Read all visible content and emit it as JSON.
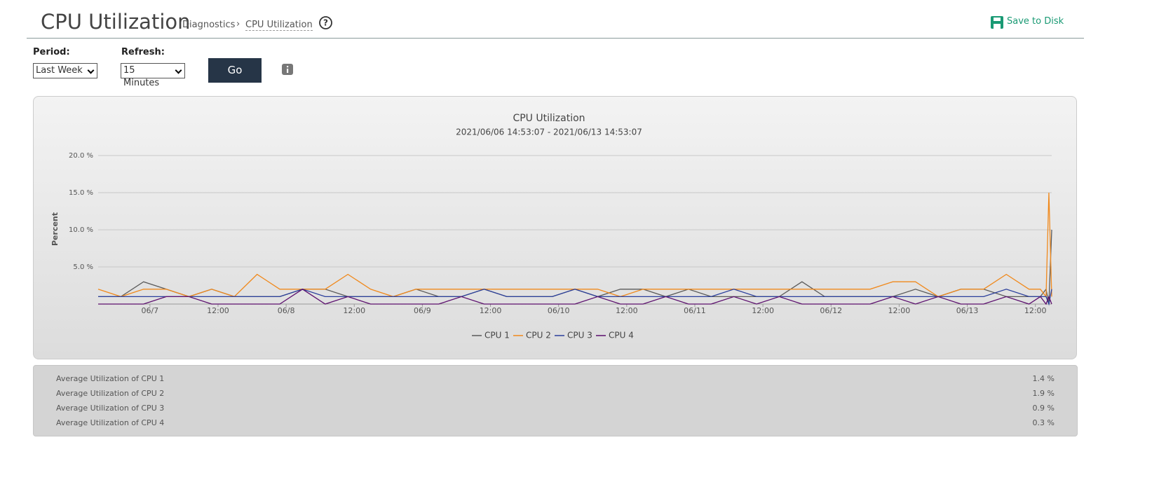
{
  "header": {
    "title": "CPU Utilization",
    "breadcrumb": [
      "Diagnostics",
      "CPU Utilization"
    ],
    "save": "Save to Disk"
  },
  "controls": {
    "period_label": "Period:",
    "period": "Last Week",
    "refresh_label": "Refresh:",
    "refresh": "15 Minutes",
    "go": "Go"
  },
  "chart_data": {
    "type": "line",
    "title": "CPU Utilization",
    "subtitle": "2021/06/06 14:53:07 - 2021/06/13 14:53:07",
    "y_label": "Percent",
    "x": [
      0,
      4,
      8,
      12,
      16,
      20,
      24,
      28,
      32,
      36,
      40,
      44,
      48,
      52,
      56,
      60,
      64,
      68,
      72,
      76,
      80,
      84,
      88,
      92,
      96,
      100,
      104,
      108,
      112,
      116,
      120,
      124,
      128,
      132,
      136,
      140,
      144,
      148,
      152,
      156,
      160,
      164,
      166,
      167,
      167.5,
      168
    ],
    "xlim": [
      0,
      168
    ],
    "xticks": [
      {
        "value": 9.12,
        "label": "06/7"
      },
      {
        "value": 21.12,
        "label": "12:00"
      },
      {
        "value": 33.12,
        "label": "06/8"
      },
      {
        "value": 45.12,
        "label": "12:00"
      },
      {
        "value": 57.12,
        "label": "06/9"
      },
      {
        "value": 69.12,
        "label": "12:00"
      },
      {
        "value": 81.12,
        "label": "06/10"
      },
      {
        "value": 93.12,
        "label": "12:00"
      },
      {
        "value": 105.12,
        "label": "06/11"
      },
      {
        "value": 117.12,
        "label": "12:00"
      },
      {
        "value": 129.12,
        "label": "06/12"
      },
      {
        "value": 141.12,
        "label": "12:00"
      },
      {
        "value": 153.12,
        "label": "06/13"
      },
      {
        "value": 165.12,
        "label": "12:00"
      }
    ],
    "ylim": [
      0,
      20
    ],
    "yticks": [
      {
        "value": 5,
        "label": "5.0 %"
      },
      {
        "value": 10,
        "label": "10.0 %"
      },
      {
        "value": 15,
        "label": "15.0 %"
      },
      {
        "value": 20,
        "label": "20.0 %"
      }
    ],
    "grid": true,
    "series": [
      {
        "name": "CPU 1",
        "color": "#5a5a5a",
        "values": [
          1,
          1,
          3,
          2,
          1,
          2,
          1,
          1,
          1,
          2,
          2,
          1,
          1,
          1,
          2,
          1,
          1,
          2,
          1,
          1,
          1,
          2,
          1,
          2,
          2,
          1,
          2,
          1,
          1,
          1,
          1,
          3,
          1,
          1,
          1,
          1,
          2,
          1,
          2,
          2,
          1,
          1,
          1,
          2,
          0,
          10
        ]
      },
      {
        "name": "CPU 2",
        "color": "#f0891c",
        "values": [
          2,
          1,
          2,
          2,
          1,
          2,
          1,
          4,
          2,
          2,
          2,
          4,
          2,
          1,
          2,
          2,
          2,
          2,
          2,
          2,
          2,
          2,
          2,
          1,
          2,
          2,
          2,
          2,
          2,
          2,
          2,
          2,
          2,
          2,
          2,
          3,
          3,
          1,
          2,
          2,
          4,
          2,
          2,
          1,
          15,
          1
        ]
      },
      {
        "name": "CPU 3",
        "color": "#2b3f9c",
        "values": [
          1,
          1,
          1,
          1,
          1,
          1,
          1,
          1,
          1,
          2,
          1,
          1,
          1,
          1,
          1,
          1,
          1,
          2,
          1,
          1,
          1,
          2,
          1,
          1,
          1,
          1,
          1,
          1,
          2,
          1,
          1,
          1,
          1,
          1,
          1,
          1,
          1,
          1,
          1,
          1,
          2,
          1,
          1,
          1,
          0,
          2
        ]
      },
      {
        "name": "CPU 4",
        "color": "#5c0f6e",
        "values": [
          0,
          0,
          0,
          1,
          1,
          0,
          0,
          0,
          0,
          2,
          0,
          1,
          0,
          0,
          0,
          0,
          1,
          0,
          0,
          0,
          0,
          0,
          1,
          0,
          0,
          1,
          0,
          0,
          1,
          0,
          1,
          0,
          0,
          0,
          0,
          1,
          0,
          1,
          0,
          0,
          1,
          0,
          1,
          0,
          1,
          0
        ]
      }
    ]
  },
  "summary": {
    "rows": [
      [
        "Average Utilization of CPU 1",
        "1.4 %"
      ],
      [
        "Average Utilization of CPU 2",
        "1.9 %"
      ],
      [
        "Average Utilization of CPU 3",
        "0.9 %"
      ],
      [
        "Average Utilization of CPU 4",
        "0.3 %"
      ]
    ]
  }
}
